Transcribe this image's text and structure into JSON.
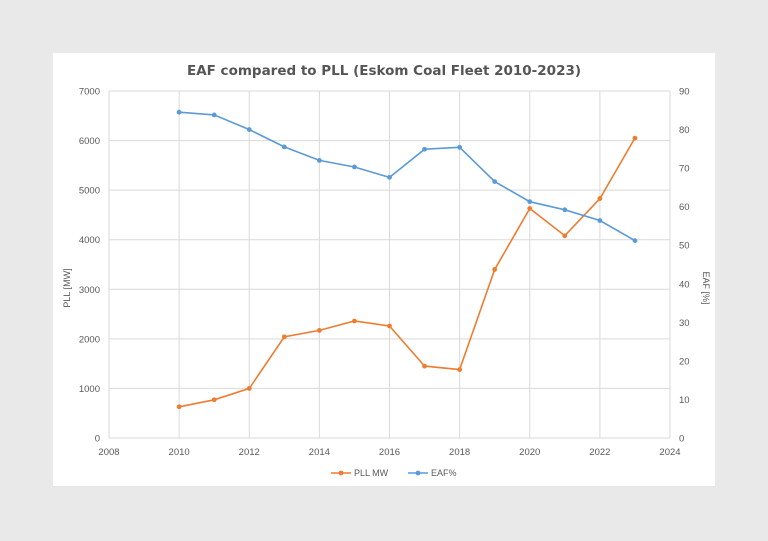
{
  "chart_data": {
    "type": "line",
    "title": "EAF compared to PLL (Eskom Coal Fleet 2010-2023)",
    "xlabel": "",
    "ylabel": "PLL [MW]",
    "y2label": "EAF [%]",
    "xlim": [
      2008,
      2024
    ],
    "ylim": [
      0,
      7000
    ],
    "y2lim": [
      0,
      90
    ],
    "x_ticks": [
      "2008",
      "2010",
      "2012",
      "2014",
      "2016",
      "2018",
      "2020",
      "2022",
      "2024"
    ],
    "y_ticks": [
      "0",
      "1000",
      "2000",
      "3000",
      "4000",
      "5000",
      "6000",
      "7000"
    ],
    "y2_ticks": [
      "0",
      "10",
      "20",
      "30",
      "40",
      "50",
      "60",
      "70",
      "80",
      "90"
    ],
    "grid": true,
    "legend_position": "bottom",
    "x": [
      2010,
      2011,
      2012,
      2013,
      2014,
      2015,
      2016,
      2017,
      2018,
      2019,
      2020,
      2021,
      2022,
      2023
    ],
    "series": [
      {
        "name": "PLL MW",
        "axis": "left",
        "color": "#ED7D31",
        "values": [
          630,
          770,
          1000,
          2040,
          2170,
          2360,
          2260,
          1450,
          1380,
          3400,
          4630,
          4080,
          4830,
          6050
        ]
      },
      {
        "name": "EAF%",
        "axis": "right",
        "color": "#5B9BD5",
        "values": [
          84.5,
          83.8,
          80.0,
          75.5,
          72.0,
          70.3,
          67.6,
          74.9,
          75.4,
          66.5,
          61.3,
          59.2,
          56.4,
          51.2
        ]
      }
    ]
  }
}
